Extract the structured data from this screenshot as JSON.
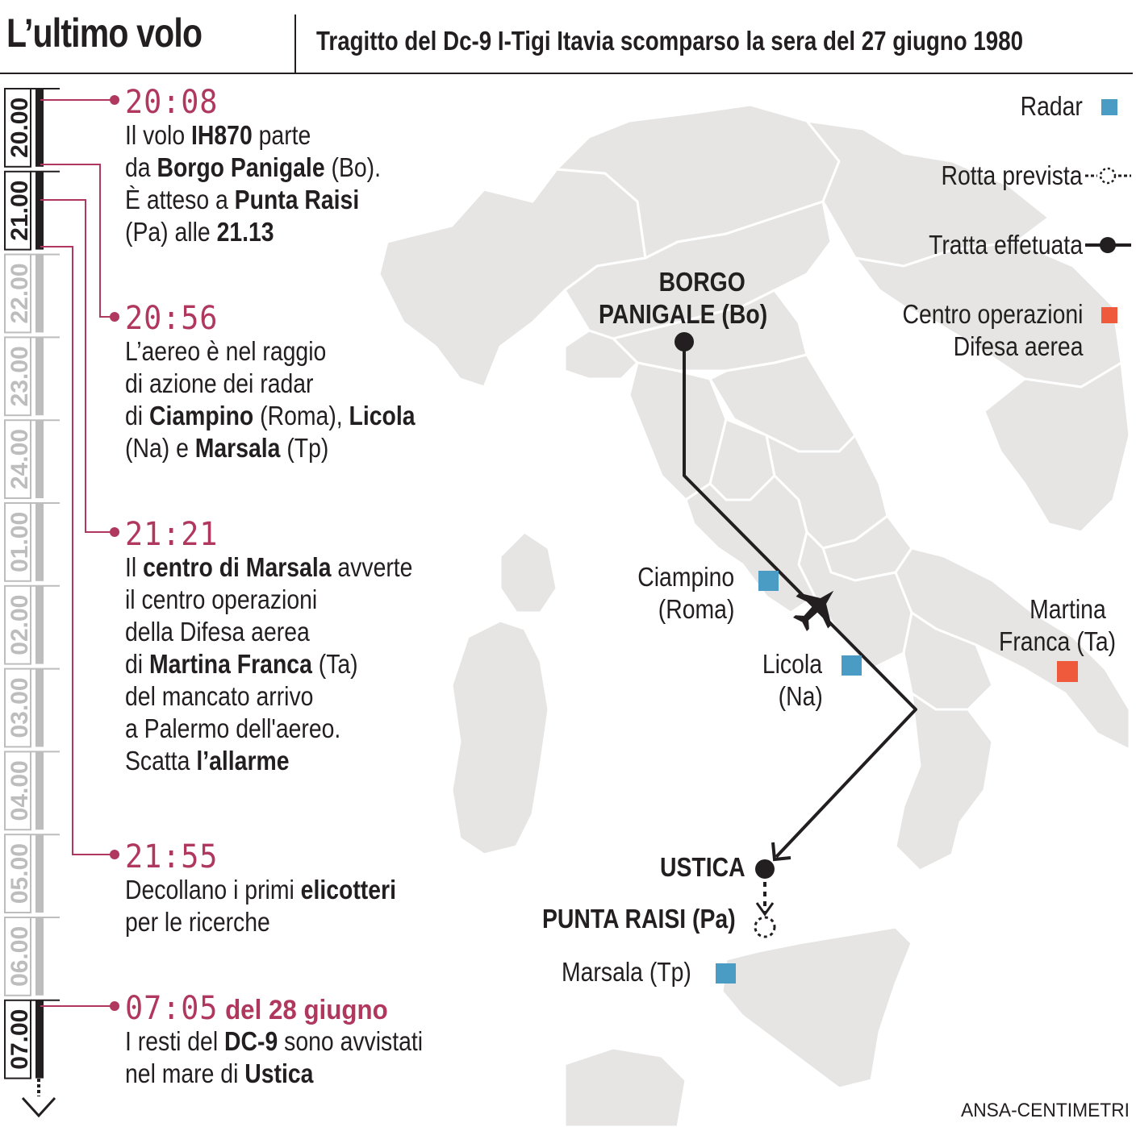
{
  "header": {
    "title": "L’ultimo volo",
    "subtitle": "Tragitto del Dc-9 I-Tigi Itavia scomparso la sera del 27 giugno 1980"
  },
  "timeline": {
    "hours": [
      "20.00",
      "21.00",
      "22.00",
      "23.00",
      "24.00",
      "01.00",
      "02.00",
      "03.00",
      "04.00",
      "05.00",
      "06.00",
      "07.00"
    ],
    "active_hours": [
      "20.00",
      "21.00",
      "07.00"
    ]
  },
  "events": [
    {
      "time": "20:08",
      "date_suffix": "",
      "lines": [
        [
          {
            "t": "Il volo "
          },
          {
            "t": "IH870",
            "b": true
          },
          {
            "t": " parte"
          }
        ],
        [
          {
            "t": "da "
          },
          {
            "t": "Borgo Panigale",
            "b": true
          },
          {
            "t": " (Bo)."
          }
        ],
        [
          {
            "t": "È atteso a "
          },
          {
            "t": "Punta Raisi",
            "b": true
          }
        ],
        [
          {
            "t": "(Pa) alle "
          },
          {
            "t": "21.13",
            "b": true
          }
        ]
      ]
    },
    {
      "time": "20:56",
      "date_suffix": "",
      "lines": [
        [
          {
            "t": "L’aereo è nel raggio"
          }
        ],
        [
          {
            "t": "di azione dei radar"
          }
        ],
        [
          {
            "t": "di "
          },
          {
            "t": "Ciampino",
            "b": true
          },
          {
            "t": " (Roma), "
          },
          {
            "t": "Licola",
            "b": true
          }
        ],
        [
          {
            "t": "(Na) e "
          },
          {
            "t": "Marsala",
            "b": true
          },
          {
            "t": " (Tp)"
          }
        ]
      ]
    },
    {
      "time": "21:21",
      "date_suffix": "",
      "lines": [
        [
          {
            "t": "Il "
          },
          {
            "t": "centro di Marsala",
            "b": true
          },
          {
            "t": " avverte"
          }
        ],
        [
          {
            "t": "il centro operazioni"
          }
        ],
        [
          {
            "t": "della Difesa aerea"
          }
        ],
        [
          {
            "t": "di "
          },
          {
            "t": "Martina Franca",
            "b": true
          },
          {
            "t": " (Ta)"
          }
        ],
        [
          {
            "t": "del mancato arrivo"
          }
        ],
        [
          {
            "t": "a Palermo dell'aereo."
          }
        ],
        [
          {
            "t": "Scatta "
          },
          {
            "t": "l’allarme",
            "b": true
          }
        ]
      ]
    },
    {
      "time": "21:55",
      "date_suffix": "",
      "lines": [
        [
          {
            "t": "Decollano i primi "
          },
          {
            "t": "elicotteri",
            "b": true
          }
        ],
        [
          {
            "t": "per le ricerche"
          }
        ]
      ]
    },
    {
      "time": "07:05",
      "date_suffix": " del 28 giugno",
      "lines": [
        [
          {
            "t": "I resti del "
          },
          {
            "t": "DC-9",
            "b": true
          },
          {
            "t": " sono avvistati"
          }
        ],
        [
          {
            "t": "nel mare di "
          },
          {
            "t": "Ustica",
            "b": true
          }
        ]
      ]
    }
  ],
  "legend": {
    "radar": "Radar",
    "planned_route": "Rotta prevista",
    "flown_route": "Tratta effetuata",
    "air_defense_line1": "Centro operazioni",
    "air_defense_line2": "Difesa aerea"
  },
  "map": {
    "origin_line1": "BORGO",
    "origin_line2": "PANIGALE (Bo)",
    "crash": "USTICA",
    "destination": "PUNTA RAISI (Pa)",
    "ciampino_line1": "Ciampino",
    "ciampino_line2": "(Roma)",
    "licola_line1": "Licola",
    "licola_line2": "(Na)",
    "marsala": "Marsala (Tp)",
    "martina_line1": "Martina",
    "martina_line2": "Franca (Ta)"
  },
  "colors": {
    "accent": "#b0385f",
    "radar": "#4a9cc4",
    "air_defense": "#ef5a3c",
    "land": "#e6e5e4",
    "border": "#ffffff",
    "route": "#231f20",
    "inactive_timeline": "#bdbdbd"
  },
  "credit": "ANSA-CENTIMETRI"
}
